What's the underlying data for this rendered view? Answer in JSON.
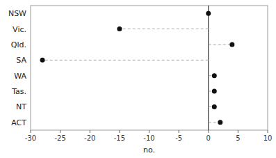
{
  "chart_data": {
    "type": "lollipop",
    "categories": [
      "NSW",
      "Vic.",
      "Qld.",
      "SA",
      "WA",
      "Tas.",
      "NT",
      "ACT"
    ],
    "values": [
      0,
      -15,
      4,
      -28,
      1,
      1,
      1,
      2
    ],
    "x_label": "no.",
    "xlim": [
      -30,
      10
    ],
    "xticks": [
      -30,
      -25,
      -20,
      -15,
      -10,
      -5,
      0,
      5,
      10
    ],
    "color": "#111111",
    "line_style": "dashed",
    "grid": false
  }
}
